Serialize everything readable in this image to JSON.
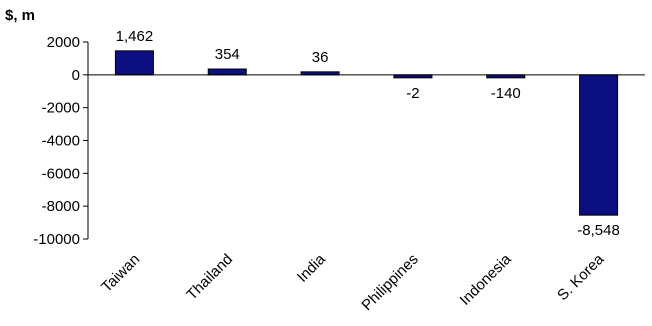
{
  "chart_data": {
    "type": "bar",
    "ylabel": "$, m",
    "categories": [
      "Taiwan",
      "Thailand",
      "India",
      "Philippines",
      "Indonesia",
      "S. Korea"
    ],
    "values": [
      1462,
      354,
      36,
      -2,
      -140,
      -8548
    ],
    "data_labels": [
      "1,462",
      "354",
      "36",
      "-2",
      "-140",
      "-8,548"
    ],
    "yticks": [
      2000,
      0,
      -2000,
      -4000,
      -6000,
      -8000,
      -10000
    ],
    "ylim": [
      -10000,
      2000
    ],
    "grid": false,
    "legend": "none",
    "colors": {
      "bar_fill": "#0b0f80",
      "bar_stroke": "#000000"
    }
  }
}
